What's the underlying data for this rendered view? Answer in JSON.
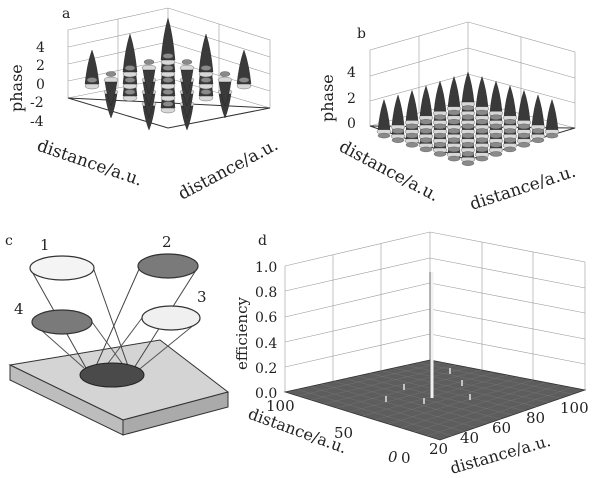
{
  "panels": {
    "a": {
      "letter": "a",
      "zlabel": "phase",
      "xlabel": "distance/a.u.",
      "ylabel": "distance/a.u.",
      "zticks": [
        "4",
        "2",
        "0",
        "-2",
        "-4"
      ]
    },
    "b": {
      "letter": "b",
      "zlabel": "phase",
      "xlabel": "distance/a.u.",
      "ylabel": "distance/a.u.",
      "zticks": [
        "4",
        "2",
        "0"
      ]
    },
    "c": {
      "letter": "c",
      "beam_labels": [
        "1",
        "2",
        "3",
        "4"
      ]
    },
    "d": {
      "letter": "d",
      "zlabel": "efficiency",
      "zticks": [
        "1.0",
        "0.8",
        "0.6",
        "0.4",
        "0.2",
        "0.0"
      ],
      "left_ticks": [
        "100",
        "50",
        "0"
      ],
      "right_ticks": [
        "0",
        "20",
        "40",
        "60",
        "80",
        "100"
      ],
      "xlabel": "distance/a.u.",
      "ylabel": "distance/a.u."
    }
  },
  "colors": {
    "dark": "#3a3a3a",
    "mid": "#8a8a8a",
    "light": "#d8d8d8"
  }
}
